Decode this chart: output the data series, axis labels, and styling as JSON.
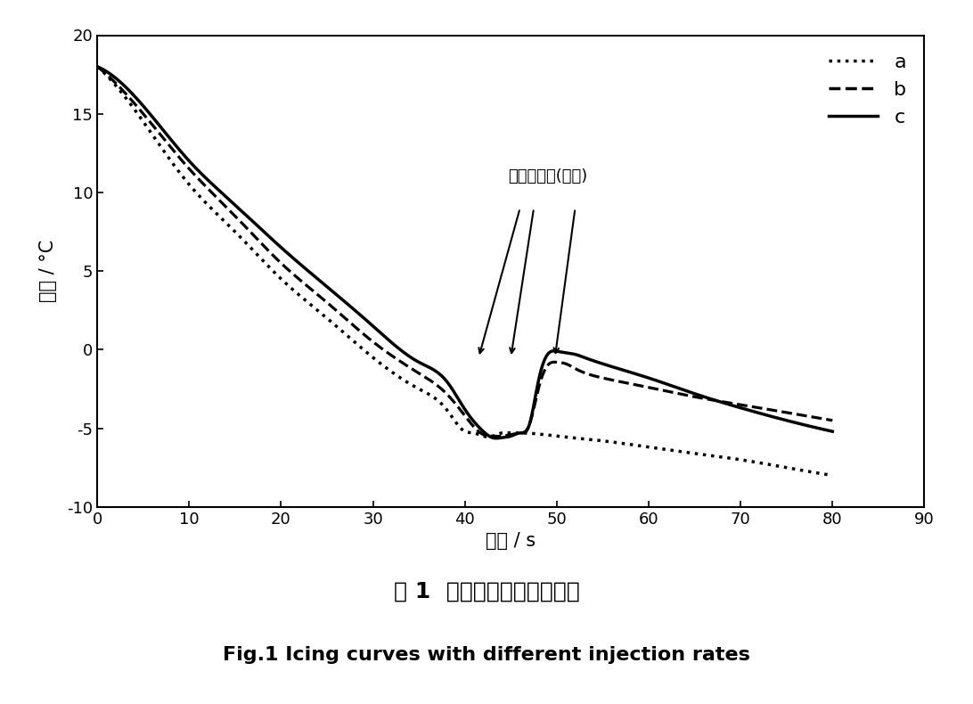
{
  "title_cn": "图 1  不同进样量的结冰曲线",
  "title_en": "Fig.1 Icing curves with different injection rates",
  "xlabel": "时间 / s",
  "ylabel": "温度 / °C",
  "xlim": [
    0,
    90
  ],
  "ylim": [
    -10,
    20
  ],
  "xticks": [
    0,
    10,
    20,
    30,
    40,
    50,
    60,
    70,
    80,
    90
  ],
  "yticks": [
    -10,
    -5,
    0,
    5,
    10,
    15,
    20
  ],
  "annotation_text": "理论测量点(冰点)",
  "legend_labels": [
    "a",
    "b",
    "c"
  ],
  "background_color": "#ffffff",
  "line_color": "#000000"
}
